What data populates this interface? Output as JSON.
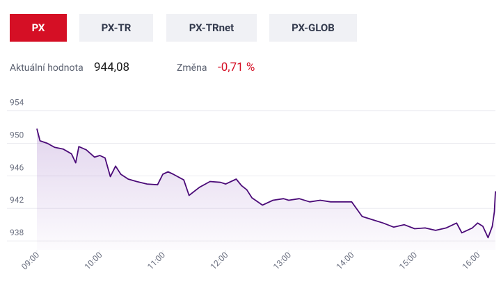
{
  "tabs": [
    "PX",
    "PX-TR",
    "PX-TRnet",
    "PX-GLOB"
  ],
  "stats": {
    "current_label": "Aktuální hodnota",
    "current_value": "944,08",
    "change_label": "Změna",
    "change_value": "-0,71 %"
  },
  "chart_data": {
    "type": "line",
    "color": "#4b0b78",
    "x": [
      540,
      543,
      550,
      557,
      565,
      573,
      577,
      580,
      587,
      595,
      600,
      605,
      610,
      615,
      620,
      627,
      635,
      645,
      655,
      660,
      665,
      670,
      680,
      685,
      695,
      705,
      715,
      720,
      730,
      735,
      740,
      745,
      755,
      765,
      775,
      780,
      790,
      800,
      810,
      820,
      830,
      840,
      850,
      860,
      870,
      880,
      890,
      900,
      910,
      920,
      930,
      940,
      945,
      955,
      960,
      965,
      970,
      974,
      976,
      977
    ],
    "values": [
      951.8,
      950.3,
      950.0,
      949.5,
      949.3,
      948.7,
      947.6,
      949.6,
      949.2,
      948.3,
      948.5,
      948.2,
      945.9,
      947.2,
      946.2,
      945.6,
      945.3,
      945.0,
      944.9,
      946.2,
      946.5,
      946.2,
      945.5,
      943.6,
      944.6,
      945.3,
      945.2,
      945.0,
      945.6,
      944.8,
      944.3,
      943.3,
      942.4,
      943.0,
      943.2,
      943.0,
      943.2,
      942.8,
      943.0,
      942.8,
      942.8,
      942.8,
      941.0,
      940.6,
      940.2,
      939.7,
      940.0,
      939.5,
      939.6,
      939.3,
      939.6,
      940.2,
      939.0,
      939.6,
      940.2,
      939.8,
      938.4,
      939.8,
      941.6,
      944.1
    ],
    "xlim": [
      540,
      977
    ],
    "xticks": [
      {
        "value": 540,
        "label": "09:00"
      },
      {
        "value": 600,
        "label": "10:00"
      },
      {
        "value": 660,
        "label": "11:00"
      },
      {
        "value": 720,
        "label": "12:00"
      },
      {
        "value": 780,
        "label": "13:00"
      },
      {
        "value": 840,
        "label": "14:00"
      },
      {
        "value": 900,
        "label": "15:00"
      },
      {
        "value": 960,
        "label": "16:00"
      }
    ],
    "ylim": [
      936.9,
      955.5
    ],
    "yticks": [
      938,
      942,
      946,
      950,
      954
    ],
    "grid": true
  }
}
